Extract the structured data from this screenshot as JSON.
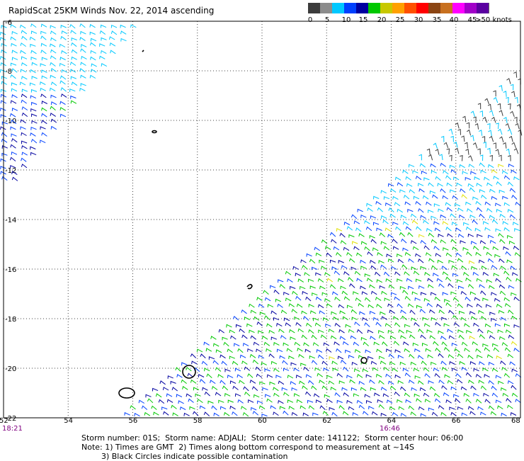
{
  "title": "RapidScat 25KM Winds Nov. 22, 2014 ascending",
  "colorbar": {
    "labels": [
      "0",
      "5",
      "10",
      "15",
      "20",
      "25",
      "30",
      "35",
      "40",
      "45",
      ">50 knots"
    ],
    "colors": [
      "#3c3c3c",
      "#8c8c8c",
      "#00c8ff",
      "#0040ff",
      "#0000a0",
      "#00c800",
      "#c8c800",
      "#ffa000",
      "#ff5000",
      "#ff0000",
      "#8b4513",
      "#c87020",
      "#ff00ff",
      "#a000c8",
      "#5a00a0"
    ]
  },
  "map": {
    "lat_labels": [
      "-6",
      "-8",
      "-10",
      "-12",
      "-14",
      "-16",
      "-18",
      "-20",
      "-22"
    ],
    "lon_labels": [
      "52",
      "54",
      "56",
      "58",
      "60",
      "62",
      "64",
      "66",
      "68"
    ]
  },
  "times": {
    "left": "18:21",
    "mid": "16:46"
  },
  "footer": {
    "line1": "Storm number: 01S;  Storm name: ADJALI;  Storm center date: 141122;  Storm center hour: 06:00",
    "line2": "Note: 1) Times are GMT  2) Times along bottom correspond to measurement at ~14S",
    "line3": "        3) Black Circles indicate possible contamination"
  }
}
